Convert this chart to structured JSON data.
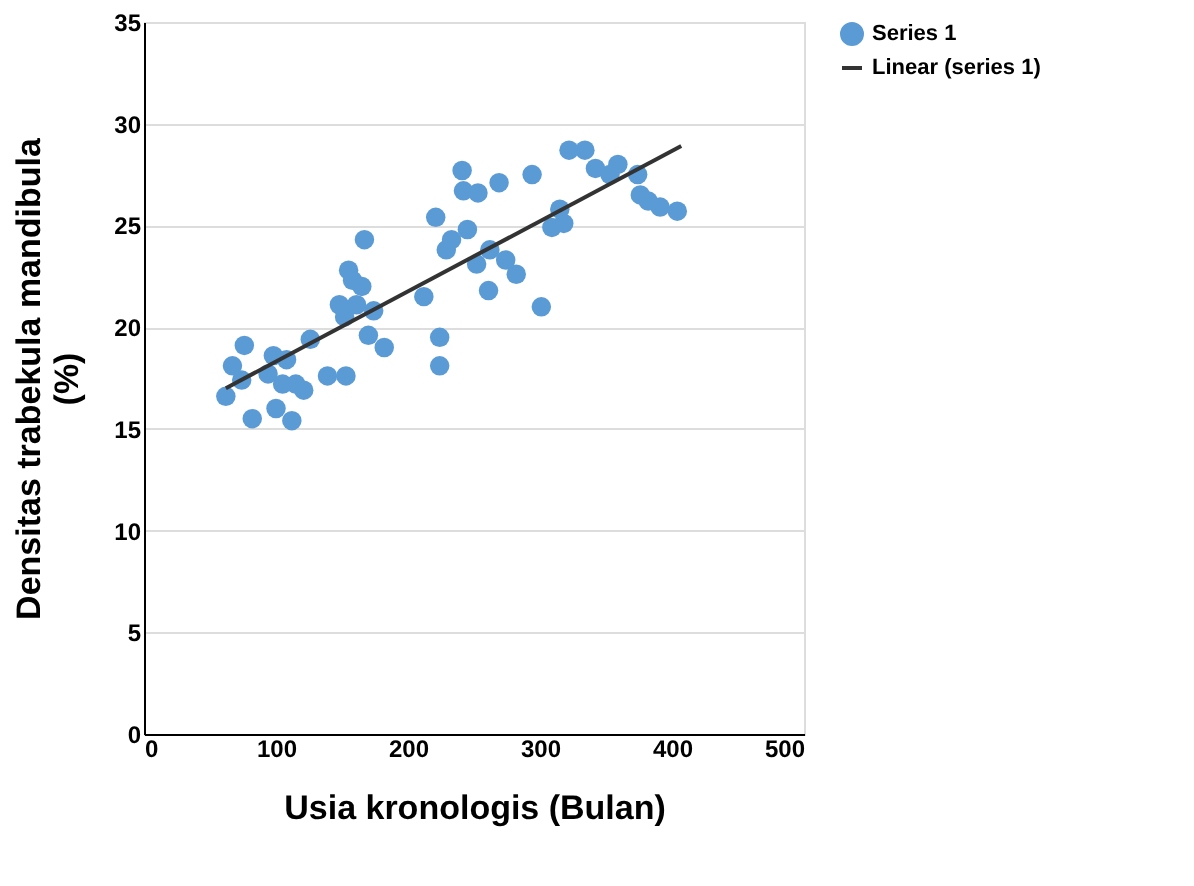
{
  "chart_data": {
    "type": "scatter",
    "xlabel": "Usia kronologis (Bulan)",
    "ylabel": "Densitas trabekula mandibula (%)",
    "xlim": [
      0,
      500
    ],
    "xticks": [
      0,
      100,
      200,
      300,
      400,
      500
    ],
    "ylim": [
      0,
      35
    ],
    "yticks": [
      0,
      5,
      10,
      15,
      20,
      25,
      30,
      35
    ],
    "grid": "y",
    "legend": "right",
    "series": [
      {
        "name": "Series 1",
        "marker": "circle",
        "color": "#5b9bd5",
        "x": [
          62,
          67,
          76,
          74,
          82,
          94,
          98,
          100,
          105,
          108,
          112,
          115,
          121,
          126,
          139,
          153,
          148,
          152,
          155,
          158,
          161,
          165,
          170,
          174,
          167,
          182,
          212,
          221,
          224,
          224,
          229,
          233,
          241,
          242,
          253,
          245,
          252,
          261,
          262,
          269,
          274,
          282,
          294,
          301,
          309,
          315,
          318,
          322,
          334,
          342,
          353,
          359,
          374,
          376,
          382,
          391,
          404
        ],
        "values": [
          16.6,
          18.1,
          19.1,
          17.4,
          15.5,
          17.7,
          18.6,
          16.0,
          17.2,
          18.4,
          15.4,
          17.2,
          16.9,
          19.4,
          17.6,
          17.6,
          21.1,
          20.5,
          22.8,
          22.3,
          21.1,
          22.0,
          19.6,
          20.8,
          24.3,
          19.0,
          21.5,
          25.4,
          19.5,
          18.1,
          23.8,
          24.3,
          27.7,
          26.7,
          26.6,
          24.8,
          23.1,
          21.8,
          23.8,
          27.1,
          23.3,
          22.6,
          27.5,
          21.0,
          24.9,
          25.8,
          25.1,
          28.7,
          28.7,
          27.8,
          27.5,
          28.0,
          27.5,
          26.5,
          26.2,
          25.9,
          25.7
        ]
      },
      {
        "name": "Linear (series 1)",
        "type": "line",
        "color": "#333333",
        "x": [
          62,
          407
        ],
        "values": [
          17.0,
          28.9
        ]
      }
    ]
  }
}
